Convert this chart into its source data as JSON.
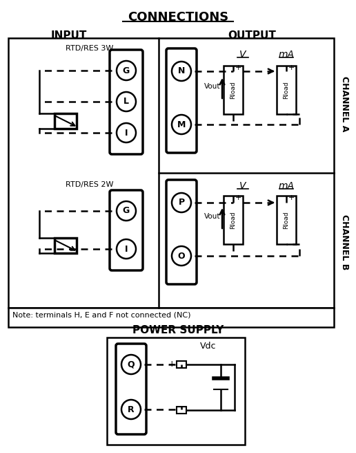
{
  "title": "CONNECTIONS",
  "input_label": "INPUT",
  "output_label": "OUTPUT",
  "channel_a_label": "CHANNEL A",
  "channel_b_label": "CHANNEL B",
  "power_supply_label": "POWER SUPPLY",
  "note_text": "Note: terminals H, E and F not connected (NC)",
  "bg_color": "#ffffff",
  "terminal_labels_3w": [
    "G",
    "L",
    "I"
  ],
  "terminal_labels_2w": [
    "G",
    "I"
  ],
  "output_labels_ch_a": [
    "N",
    "M"
  ],
  "output_labels_ch_b": [
    "P",
    "O"
  ],
  "power_labels": [
    "Q",
    "R"
  ],
  "rtd_3w_label": "RTD/RES 3W",
  "rtd_2w_label": "RTD/RES 2W",
  "v_label": "V",
  "ma_label": "mA",
  "vout_label": "Vout",
  "vdc_label": "Vdc",
  "rload_label": "Rload",
  "plus_label": "+",
  "minus_label": "-"
}
